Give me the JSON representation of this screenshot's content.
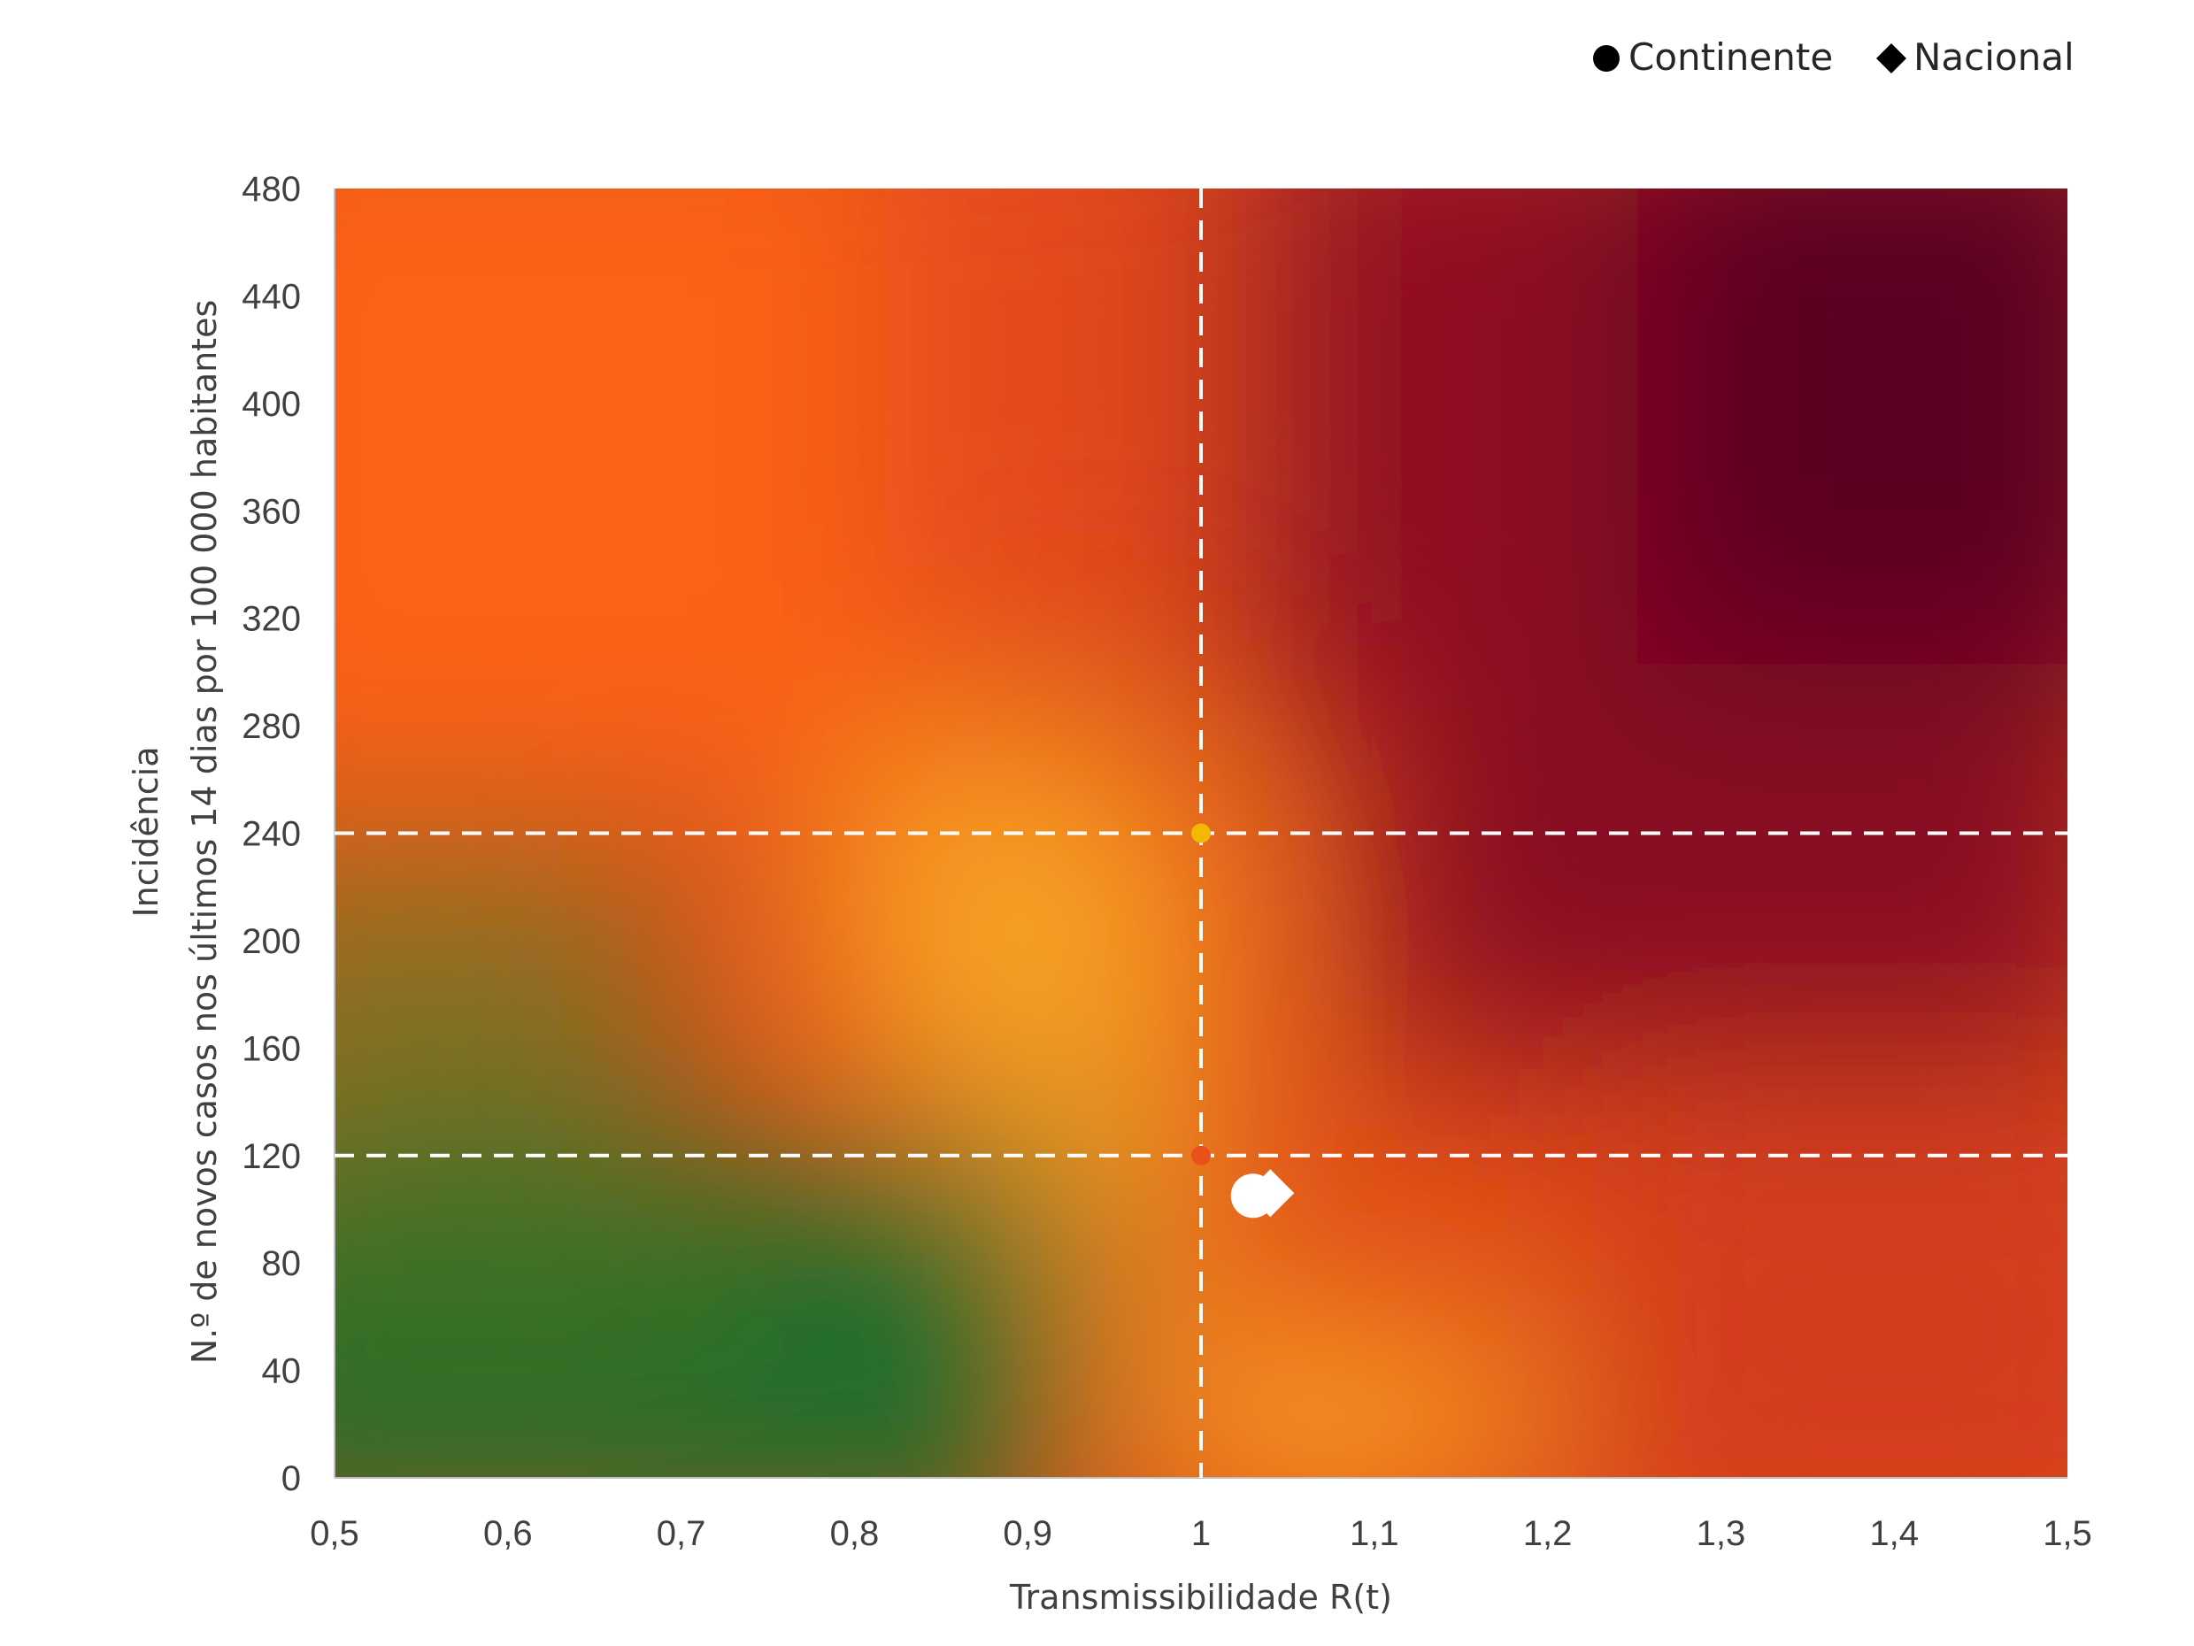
{
  "chart_data": {
    "type": "scatter",
    "title": "",
    "xlabel": "Transmissibilidade R(t)",
    "ylabel_lines": [
      "Incidência",
      "N.º de novos casos nos últimos 14 dias por 100 000 habitantes"
    ],
    "xlim": [
      0.5,
      1.5
    ],
    "ylim": [
      0,
      480
    ],
    "x_ticks": [
      {
        "value": 0.5,
        "label": "0,5"
      },
      {
        "value": 0.6,
        "label": "0,6"
      },
      {
        "value": 0.7,
        "label": "0,7"
      },
      {
        "value": 0.8,
        "label": "0,8"
      },
      {
        "value": 0.9,
        "label": "0,9"
      },
      {
        "value": 1.0,
        "label": "1"
      },
      {
        "value": 1.1,
        "label": "1,1"
      },
      {
        "value": 1.2,
        "label": "1,2"
      },
      {
        "value": 1.3,
        "label": "1,3"
      },
      {
        "value": 1.4,
        "label": "1,4"
      },
      {
        "value": 1.5,
        "label": "1,5"
      }
    ],
    "y_ticks": [
      {
        "value": 0,
        "label": "0"
      },
      {
        "value": 40,
        "label": "40"
      },
      {
        "value": 80,
        "label": "80"
      },
      {
        "value": 120,
        "label": "120"
      },
      {
        "value": 160,
        "label": "160"
      },
      {
        "value": 200,
        "label": "200"
      },
      {
        "value": 240,
        "label": "240"
      },
      {
        "value": 280,
        "label": "280"
      },
      {
        "value": 320,
        "label": "320"
      },
      {
        "value": 360,
        "label": "360"
      },
      {
        "value": 400,
        "label": "400"
      },
      {
        "value": 440,
        "label": "440"
      },
      {
        "value": 480,
        "label": "480"
      }
    ],
    "reference_lines": {
      "x": [
        1.0
      ],
      "y": [
        120,
        240
      ]
    },
    "reference_points": [
      {
        "x": 1.0,
        "y": 240,
        "color": "#f5b800"
      },
      {
        "x": 1.0,
        "y": 120,
        "color": "#e8501c"
      }
    ],
    "series": [
      {
        "name": "Continente",
        "marker": "circle",
        "points": [
          {
            "x": 1.03,
            "y": 105
          }
        ]
      },
      {
        "name": "Nacional",
        "marker": "diamond",
        "points": [
          {
            "x": 1.04,
            "y": 106
          }
        ]
      }
    ],
    "legend": {
      "position": "top-right"
    },
    "background": "heatmap",
    "colors": {
      "green": "#1a6e2a",
      "olive": "#8a7a22",
      "amber": "#f7a021",
      "orange": "#fa6214",
      "red": "#d8401a",
      "crimson": "#8c0a20",
      "dark": "#4a0020",
      "marker": "#ffffff",
      "legend_marker": "#000000",
      "reference_line": "#ffffff"
    }
  }
}
